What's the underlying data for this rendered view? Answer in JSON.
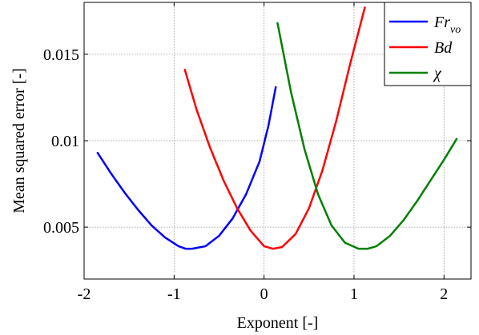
{
  "chart_data": {
    "type": "line",
    "title": "",
    "xlabel": "Exponent [-]",
    "ylabel": "Mean squared error [-]",
    "xlim": [
      -2,
      2.3
    ],
    "ylim": [
      0.002,
      0.018
    ],
    "xticks": [
      -2,
      -1,
      0,
      1,
      2
    ],
    "xtick_labels": [
      "-2",
      "-1",
      "0",
      "1",
      "2"
    ],
    "yticks": [
      0.005,
      0.01,
      0.015
    ],
    "ytick_labels": [
      "0.005",
      "0.01",
      "0.015"
    ],
    "grid": true,
    "legend_position": "top-right",
    "series": [
      {
        "name": "Fr_vo",
        "legend_main": "Fr",
        "legend_sub": "vo",
        "color": "#0000ff",
        "x": [
          -1.85,
          -1.7,
          -1.55,
          -1.4,
          -1.25,
          -1.1,
          -0.95,
          -0.87,
          -0.8,
          -0.65,
          -0.5,
          -0.35,
          -0.2,
          -0.05,
          0.05,
          0.13
        ],
        "y": [
          0.0093,
          0.0081,
          0.007,
          0.006,
          0.0051,
          0.0044,
          0.0039,
          0.00375,
          0.00375,
          0.0039,
          0.0045,
          0.0055,
          0.0069,
          0.0088,
          0.0109,
          0.0131
        ]
      },
      {
        "name": "Bd",
        "legend_main": "Bd",
        "legend_sub": "",
        "color": "#ff0000",
        "x": [
          -0.88,
          -0.75,
          -0.6,
          -0.45,
          -0.3,
          -0.15,
          0.0,
          0.1,
          0.2,
          0.35,
          0.5,
          0.65,
          0.8,
          0.95,
          1.05,
          1.12
        ],
        "y": [
          0.0141,
          0.0118,
          0.0096,
          0.0077,
          0.0061,
          0.0048,
          0.0039,
          0.00375,
          0.00385,
          0.0046,
          0.0061,
          0.0083,
          0.0111,
          0.0143,
          0.0163,
          0.0177
        ]
      },
      {
        "name": "χ",
        "legend_main": "χ",
        "legend_sub": "",
        "color": "#008000",
        "x": [
          0.15,
          0.3,
          0.45,
          0.6,
          0.75,
          0.9,
          1.05,
          1.15,
          1.25,
          1.4,
          1.55,
          1.7,
          1.85,
          2.0,
          2.14
        ],
        "y": [
          0.0168,
          0.0128,
          0.0095,
          0.0069,
          0.0051,
          0.0041,
          0.00375,
          0.00375,
          0.0039,
          0.0045,
          0.0054,
          0.0065,
          0.0077,
          0.0089,
          0.0101
        ]
      }
    ]
  }
}
